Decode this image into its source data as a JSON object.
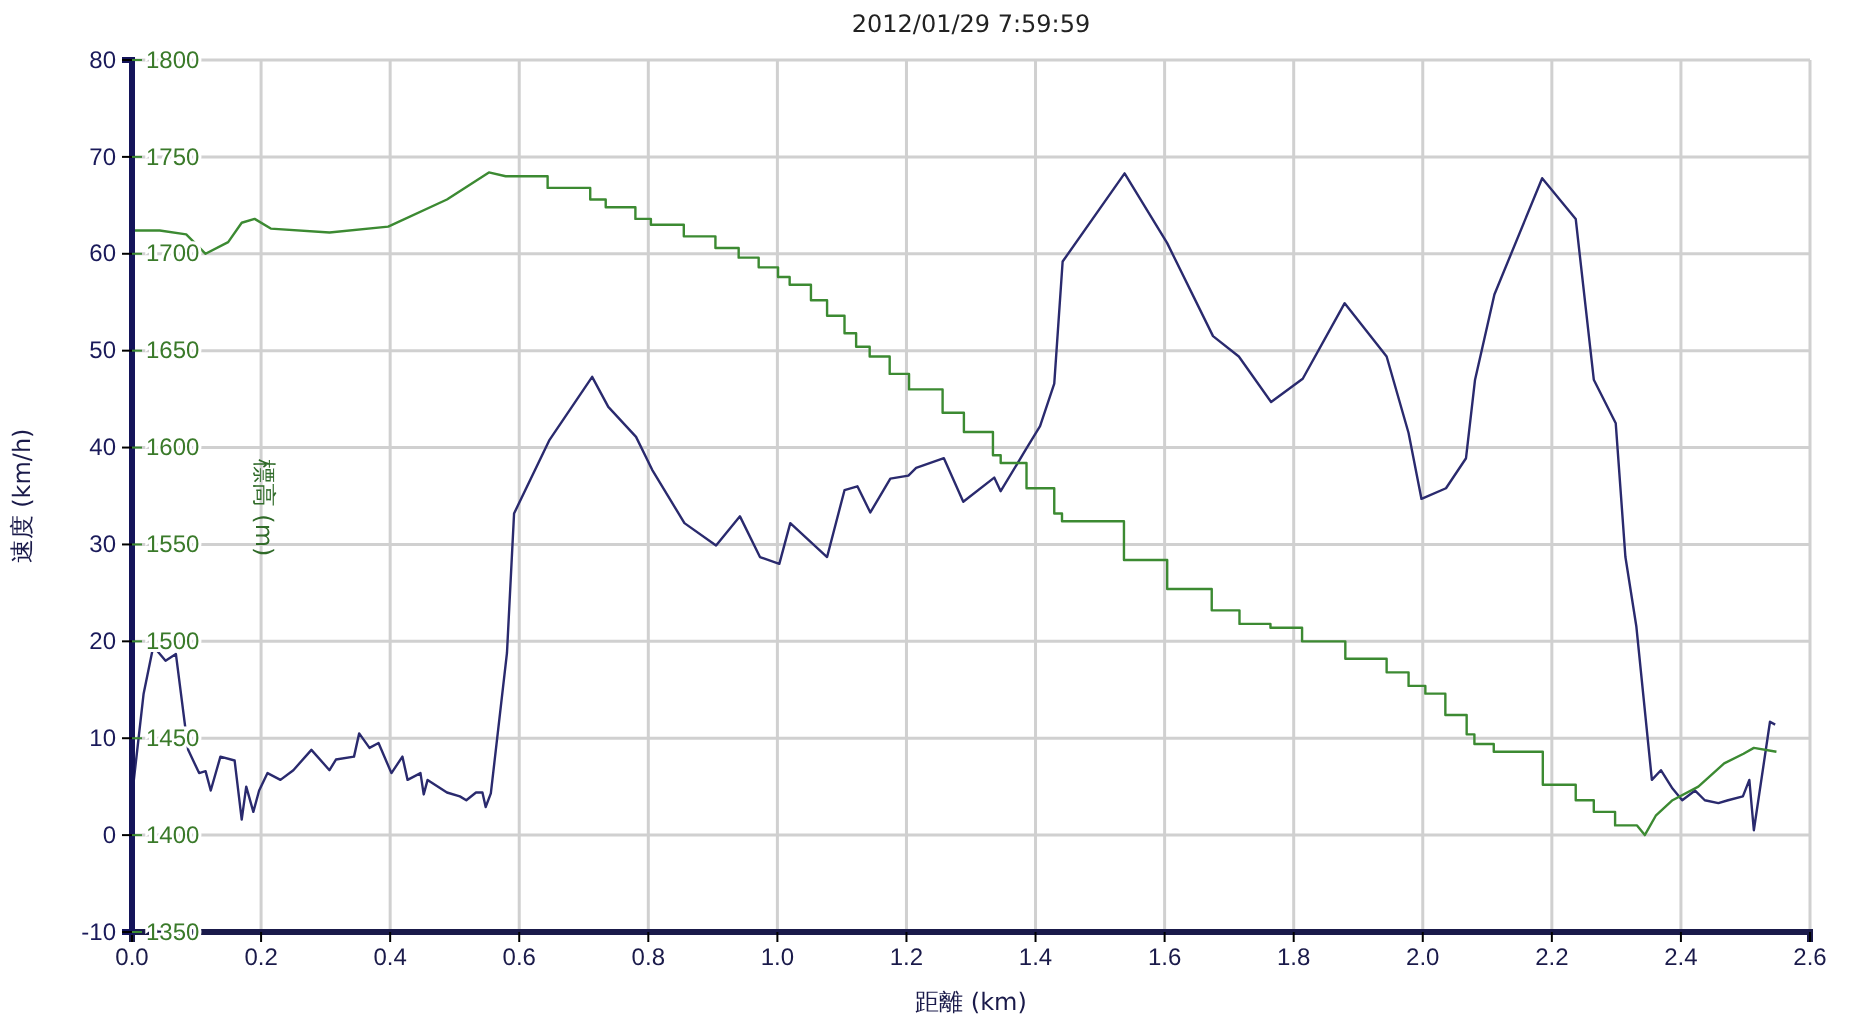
{
  "chart_data": {
    "type": "line",
    "title": "2012/01/29 7:59:59",
    "xlabel": "距離 (km)",
    "ylabel": "速度 (km/h)",
    "y2label": "標高 (m)",
    "xlim": [
      0,
      2.6
    ],
    "xticks": [
      {
        "value": 0,
        "label": "0.0"
      },
      0.2,
      0.4,
      0.6,
      0.8,
      {
        "value": 1,
        "label": "1.0"
      },
      1.2,
      1.4,
      1.6,
      1.8,
      {
        "value": 2,
        "label": "2.0"
      },
      2.2,
      2.4,
      2.6
    ],
    "ylim": [
      -10,
      80
    ],
    "yticks": [
      -10,
      0,
      10,
      20,
      30,
      40,
      50,
      60,
      70,
      80
    ],
    "y2lim": [
      1350,
      1800
    ],
    "y2ticks": [
      1350,
      1400,
      1450,
      1500,
      1550,
      1600,
      1650,
      1700,
      1750,
      1800
    ],
    "grid": true,
    "series": [
      {
        "color": "#2a2a6e",
        "axis": "y",
        "x": [
          0,
          0.018,
          0.033,
          0.052,
          0.068,
          0.087,
          0.104,
          0.114,
          0.122,
          0.137,
          0.159,
          0.17,
          0.177,
          0.188,
          0.197,
          0.21,
          0.23,
          0.25,
          0.278,
          0.306,
          0.316,
          0.344,
          0.352,
          0.368,
          0.382,
          0.402,
          0.419,
          0.427,
          0.447,
          0.452,
          0.458,
          0.488,
          0.508,
          0.518,
          0.533,
          0.543,
          0.548,
          0.556,
          0.581,
          0.592,
          0.647,
          0.713,
          0.738,
          0.781,
          0.806,
          0.856,
          0.905,
          0.942,
          0.973,
          1.003,
          1.02,
          1.077,
          1.104,
          1.124,
          1.144,
          1.175,
          1.203,
          1.215,
          1.258,
          1.288,
          1.336,
          1.346,
          1.385,
          1.407,
          1.429,
          1.442,
          1.538,
          1.604,
          1.675,
          1.715,
          1.765,
          1.814,
          1.879,
          1.944,
          1.978,
          1.998,
          2.036,
          2.067,
          2.081,
          2.111,
          2.185,
          2.237,
          2.265,
          2.299,
          2.314,
          2.331,
          2.355,
          2.369,
          2.387,
          2.402,
          2.422,
          2.437,
          2.458,
          2.473,
          2.496,
          2.506,
          2.513,
          2.538,
          2.546
        ],
        "values": [
          4,
          14.6,
          19.5,
          18,
          18.7,
          8.8,
          6.4,
          6.6,
          4.6,
          8.1,
          7.7,
          1.6,
          5,
          2.4,
          4.6,
          6.4,
          5.7,
          6.7,
          8.8,
          6.7,
          7.8,
          8.1,
          10.5,
          9,
          9.5,
          6.4,
          8.1,
          5.7,
          6.4,
          4.2,
          5.7,
          4.4,
          4,
          3.6,
          4.4,
          4.4,
          2.9,
          4.3,
          18.8,
          33.2,
          40.8,
          47.3,
          44.2,
          41.1,
          37.7,
          32.2,
          29.9,
          32.9,
          28.7,
          28,
          32.2,
          28.7,
          35.6,
          36,
          33.3,
          36.8,
          37.1,
          37.9,
          38.9,
          34.4,
          36.9,
          35.5,
          39.8,
          42.2,
          46.6,
          59.2,
          68.3,
          61.1,
          51.5,
          49.4,
          44.7,
          47.1,
          54.9,
          49.4,
          41.5,
          34.7,
          35.8,
          38.9,
          47,
          55.8,
          67.8,
          63.6,
          47,
          42.5,
          28.7,
          21.5,
          5.7,
          6.7,
          4.8,
          3.6,
          4.6,
          3.6,
          3.3,
          3.6,
          4,
          5.7,
          0.5,
          11.7,
          11.4
        ]
      },
      {
        "color": "#3c8a32",
        "axis": "y2",
        "x": [
          0,
          0.043,
          0.084,
          0.114,
          0.149,
          0.17,
          0.19,
          0.215,
          0.306,
          0.397,
          0.488,
          0.553,
          0.579,
          0.644,
          0.644,
          0.71,
          0.71,
          0.734,
          0.734,
          0.78,
          0.78,
          0.804,
          0.804,
          0.855,
          0.855,
          0.904,
          0.904,
          0.94,
          0.94,
          0.971,
          0.971,
          1.001,
          1.001,
          1.019,
          1.019,
          1.052,
          1.052,
          1.077,
          1.077,
          1.104,
          1.104,
          1.122,
          1.122,
          1.143,
          1.143,
          1.174,
          1.174,
          1.204,
          1.204,
          1.256,
          1.256,
          1.289,
          1.289,
          1.334,
          1.334,
          1.346,
          1.346,
          1.386,
          1.386,
          1.429,
          1.429,
          1.441,
          1.441,
          1.537,
          1.537,
          1.604,
          1.604,
          1.673,
          1.673,
          1.716,
          1.716,
          1.764,
          1.764,
          1.813,
          1.813,
          1.88,
          1.88,
          1.944,
          1.944,
          1.978,
          1.978,
          2.004,
          2.004,
          2.035,
          2.035,
          2.068,
          2.068,
          2.08,
          2.08,
          2.11,
          2.11,
          2.186,
          2.186,
          2.237,
          2.237,
          2.265,
          2.265,
          2.298,
          2.298,
          2.332,
          2.344,
          2.361,
          2.387,
          2.427,
          2.467,
          2.497,
          2.513,
          2.548
        ],
        "values": [
          1712,
          1712,
          1710,
          1700,
          1706,
          1716,
          1718,
          1713,
          1711,
          1714,
          1728,
          1742,
          1740,
          1740,
          1734,
          1734,
          1728,
          1728,
          1724,
          1724,
          1718,
          1718,
          1715,
          1715,
          1709,
          1709,
          1703,
          1703,
          1698,
          1698,
          1693,
          1693,
          1688,
          1688,
          1684,
          1684,
          1676,
          1676,
          1668,
          1668,
          1659,
          1659,
          1652,
          1652,
          1647,
          1647,
          1638,
          1638,
          1630,
          1630,
          1618,
          1618,
          1608,
          1608,
          1596,
          1596,
          1592,
          1592,
          1579,
          1579,
          1566,
          1566,
          1562,
          1562,
          1542,
          1542,
          1527,
          1527,
          1516,
          1516,
          1509,
          1509,
          1507,
          1507,
          1500,
          1500,
          1491,
          1491,
          1484,
          1484,
          1477,
          1477,
          1473,
          1473,
          1462,
          1462,
          1452,
          1452,
          1447,
          1447,
          1443,
          1443,
          1426,
          1426,
          1418,
          1418,
          1412,
          1412,
          1405,
          1405,
          1400,
          1410,
          1418,
          1425,
          1437,
          1442,
          1445,
          1443
        ]
      }
    ]
  }
}
